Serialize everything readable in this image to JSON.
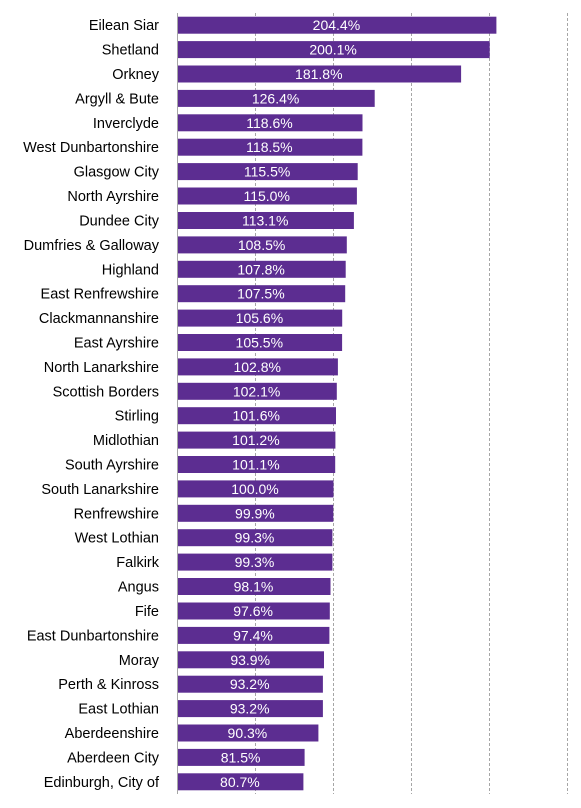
{
  "chart_data": {
    "type": "bar",
    "orientation": "horizontal",
    "categories": [
      "Eilean Siar",
      "Shetland",
      "Orkney",
      "Argyll & Bute",
      "Inverclyde",
      "West Dunbartonshire",
      "Glasgow City",
      "North Ayrshire",
      "Dundee City",
      "Dumfries & Galloway",
      "Highland",
      "East Renfrewshire",
      "Clackmannanshire",
      "East Ayrshire",
      "North Lanarkshire",
      "Scottish Borders",
      "Stirling",
      "Midlothian",
      "South Ayrshire",
      "South Lanarkshire",
      "Renfrewshire",
      "West Lothian",
      "Falkirk",
      "Angus",
      "Fife",
      "East Dunbartonshire",
      "Moray",
      "Perth & Kinross",
      "East Lothian",
      "Aberdeenshire",
      "Aberdeen City",
      "Edinburgh, City of"
    ],
    "values": [
      204.4,
      200.1,
      181.8,
      126.4,
      118.6,
      118.5,
      115.5,
      115.0,
      113.1,
      108.5,
      107.8,
      107.5,
      105.6,
      105.5,
      102.8,
      102.1,
      101.6,
      101.2,
      101.1,
      100.0,
      99.9,
      99.3,
      99.3,
      98.1,
      97.6,
      97.4,
      93.9,
      93.2,
      93.2,
      90.3,
      81.5,
      80.7
    ],
    "value_labels": [
      "204.4%",
      "200.1%",
      "181.8%",
      "126.4%",
      "118.6%",
      "118.5%",
      "115.5%",
      "115.0%",
      "113.1%",
      "108.5%",
      "107.8%",
      "107.5%",
      "105.6%",
      "105.5%",
      "102.8%",
      "102.1%",
      "101.6%",
      "101.2%",
      "101.1%",
      "100.0%",
      "99.9%",
      "99.3%",
      "99.3%",
      "98.1%",
      "97.6%",
      "97.4%",
      "93.9%",
      "93.2%",
      "93.2%",
      "90.3%",
      "81.5%",
      "80.7%"
    ],
    "xlim": [
      0,
      250
    ],
    "grid_step": 50,
    "gridlines": "vertical-dashed",
    "bar_color": "#5C2D91",
    "label_color": "#ffffff"
  }
}
